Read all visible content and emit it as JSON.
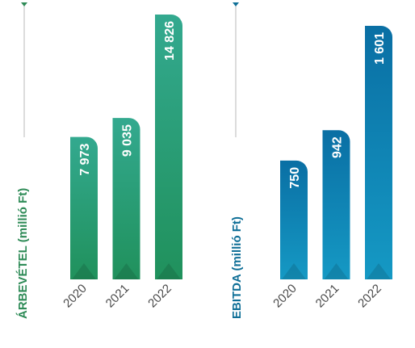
{
  "chart_data": [
    {
      "type": "bar",
      "ylabel": "ÁRBEVÉTEL (millió Ft)",
      "categories": [
        "2020",
        "2021",
        "2022"
      ],
      "values": [
        7973,
        9035,
        14826
      ],
      "value_labels": [
        "7 973",
        "9 035",
        "14 826"
      ],
      "ylim": [
        0,
        14826
      ],
      "grid": false,
      "colors": {
        "top": "#33a98f",
        "bottom": "#20915c",
        "label": "#2e8b57"
      }
    },
    {
      "type": "bar",
      "ylabel": "EBITDA (millió Ft)",
      "categories": [
        "2020",
        "2021",
        "2022"
      ],
      "values": [
        750,
        942,
        1601
      ],
      "value_labels": [
        "750",
        "942",
        "1 601"
      ],
      "ylim": [
        0,
        1601
      ],
      "grid": false,
      "colors": {
        "top": "#0a6fa4",
        "bottom": "#1599c4",
        "label": "#0f6f97"
      }
    }
  ]
}
